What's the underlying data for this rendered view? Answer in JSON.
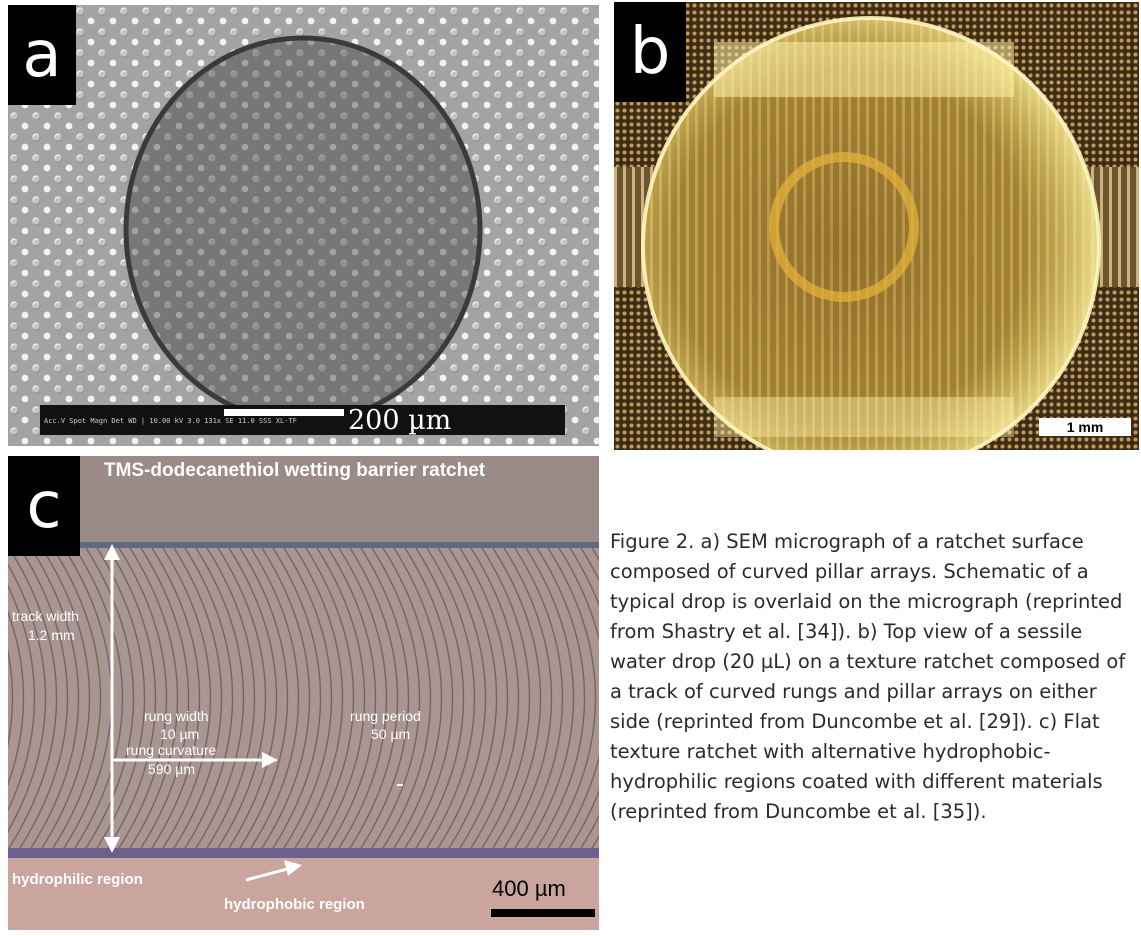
{
  "figure": {
    "panels": {
      "a": {
        "letter": "a",
        "scale_label": "200 µm",
        "databar": "Acc.V  Spot  Magn  Det  WD | 10.00 kV  3.0  131x  SE  11.0  SSS XL-TF"
      },
      "b": {
        "letter": "b",
        "scale_label": "1 mm"
      },
      "c": {
        "letter": "c",
        "title": "TMS-dodecanethiol wetting barrier ratchet",
        "track_width_line1": "track width",
        "track_width_line2": "1.2 mm",
        "rung_width_line1": "rung width",
        "rung_width_line2": "10 µm",
        "rung_curvature_line1": "rung curvature",
        "rung_curvature_line2": "590 µm",
        "rung_period_line1": "rung period",
        "rung_period_line2": "50 µm",
        "hydrophilic": "hydrophilic region",
        "hydrophobic": "hydrophobic region",
        "scale_label": "400 µm"
      }
    },
    "caption": "Figure 2. a) SEM micrograph of a ratchet surface composed of curved pillar arrays. Schematic of a typical drop is overlaid on the micrograph (reprinted from Shastry et al. [34]). b) Top view of a sessile water drop (20 µL) on a texture ratchet composed of a track of curved rungs and pillar arrays on either side (reprinted from Duncombe et al. [29]). c) Flat texture ratchet with alternative hydrophobic-hydrophilic regions coated with different materials (reprinted from Duncombe et al. [35])."
  }
}
